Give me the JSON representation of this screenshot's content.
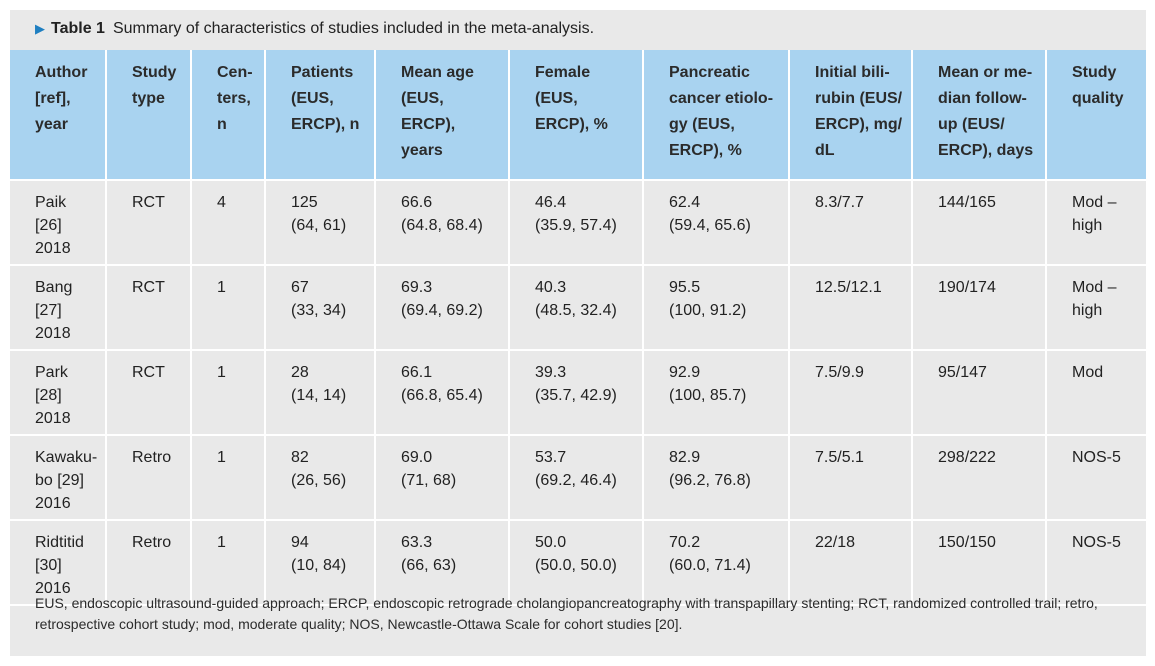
{
  "caption": {
    "marker": "▶",
    "label": "Table 1",
    "text": "Summary of characteristics of studies included in the meta-analysis."
  },
  "columns": [
    "Author [ref], year",
    "Study type",
    "Centers, n",
    "Patients (EUS, ERCP), n",
    "Mean age (EUS, ERCP), years",
    "Female (EUS, ERCP), %",
    "Pancreatic cancer etiology (EUS, ERCP), %",
    "Initial bilirubin (EUS/ERCP), mg/dL",
    "Mean or median follow-up (EUS/ERCP), days",
    "Study quality"
  ],
  "header_display": [
    "Author\n[ref],\nyear",
    "Study\ntype",
    "Cen-\nters,\nn",
    "Patients\n(EUS,\nERCP), n",
    "Mean age\n(EUS, ERCP),\nyears",
    "Female\n(EUS,\nERCP), %",
    "Pancreatic\ncancer etiolo-\ngy (EUS,\nERCP), %",
    "Initial bili-\nrubin (EUS/\nERCP), mg/\ndL",
    "Mean or me-\ndian follow-\nup (EUS/\nERCP), days",
    "Study\nquality"
  ],
  "rows": [
    {
      "author": [
        "Paik",
        "[26]",
        "2018"
      ],
      "type": "RCT",
      "centers": "4",
      "patients": [
        "125",
        "(64, 61)"
      ],
      "age": [
        "66.6",
        "(64.8, 68.4)"
      ],
      "female": [
        "46.4",
        "(35.9, 57.4)"
      ],
      "cancer": [
        "62.4",
        "(59.4, 65.6)"
      ],
      "bilirubin": "8.3/7.7",
      "followup": "144/165",
      "quality": [
        "Mod –",
        "high"
      ]
    },
    {
      "author": [
        "Bang",
        "[27]",
        "2018"
      ],
      "type": "RCT",
      "centers": "1",
      "patients": [
        "67",
        "(33, 34)"
      ],
      "age": [
        "69.3",
        "(69.4, 69.2)"
      ],
      "female": [
        "40.3",
        "(48.5, 32.4)"
      ],
      "cancer": [
        "95.5",
        "(100, 91.2)"
      ],
      "bilirubin": "12.5/12.1",
      "followup": "190/174",
      "quality": [
        "Mod –",
        "high"
      ]
    },
    {
      "author": [
        "Park",
        "[28]",
        "2018"
      ],
      "type": "RCT",
      "centers": "1",
      "patients": [
        "28",
        "(14, 14)"
      ],
      "age": [
        "66.1",
        "(66.8, 65.4)"
      ],
      "female": [
        "39.3",
        "(35.7, 42.9)"
      ],
      "cancer": [
        "92.9",
        "(100, 85.7)"
      ],
      "bilirubin": "7.5/9.9",
      "followup": "95/147",
      "quality": [
        "Mod"
      ]
    },
    {
      "author": [
        "Kawaku-",
        "bo [29]",
        "2016"
      ],
      "type": "Retro",
      "centers": "1",
      "patients": [
        "82",
        "(26, 56)"
      ],
      "age": [
        "69.0",
        "(71, 68)"
      ],
      "female": [
        "53.7",
        "(69.2, 46.4)"
      ],
      "cancer": [
        "82.9",
        "(96.2, 76.8)"
      ],
      "bilirubin": "7.5/5.1",
      "followup": "298/222",
      "quality": [
        "NOS-5"
      ]
    },
    {
      "author": [
        "Ridtitid",
        "[30]",
        "2016"
      ],
      "type": "Retro",
      "centers": "1",
      "patients": [
        "94",
        "(10, 84)"
      ],
      "age": [
        "63.3",
        "(66, 63)"
      ],
      "female": [
        "50.0",
        "(50.0, 50.0)"
      ],
      "cancer": [
        "70.2",
        "(60.0, 71.4)"
      ],
      "bilirubin": "22/18",
      "followup": "150/150",
      "quality": [
        "NOS-5"
      ]
    }
  ],
  "footnote": "EUS, endoscopic ultrasound-guided approach; ERCP, endoscopic retrograde cholangiopancreatography with transpapillary stenting; RCT, randomized controlled trail; retro, retrospective cohort study; mod, moderate quality; NOS, Newcastle-Ottawa Scale for cohort studies [20].",
  "colors": {
    "header_bg": "#a9d3f0",
    "body_bg": "#e9e9e9",
    "marker": "#1f7fc1"
  }
}
